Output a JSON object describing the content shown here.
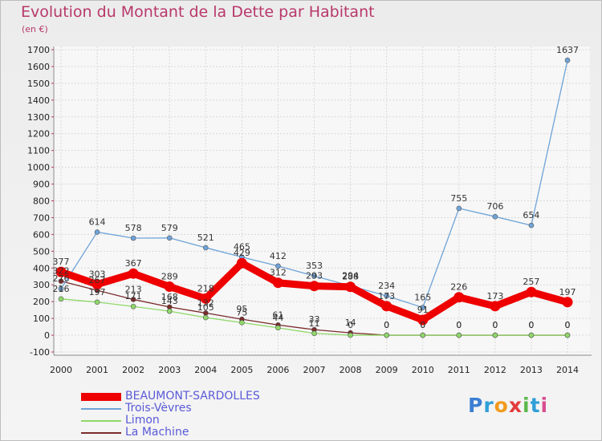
{
  "header": {
    "title": "Evolution du Montant de la Dette par Habitant",
    "subtitle": "(en €)"
  },
  "logo": {
    "text": "Proxiti"
  },
  "chart_data": {
    "type": "line",
    "title": "Evolution du Montant de la Dette par Habitant",
    "ylabel": "(en €)",
    "xlabel": "",
    "ylim": [
      -100,
      1700
    ],
    "yticks": [
      -100,
      0,
      100,
      200,
      300,
      400,
      500,
      600,
      700,
      800,
      900,
      1000,
      1100,
      1200,
      1300,
      1400,
      1500,
      1600,
      1700
    ],
    "categories": [
      "2000",
      "2001",
      "2002",
      "2003",
      "2004",
      "2005",
      "2006",
      "2007",
      "2008",
      "2009",
      "2010",
      "2011",
      "2012",
      "2013",
      "2014"
    ],
    "grid": true,
    "legend_position": "bottom-left",
    "series": [
      {
        "name": "BEAUMONT-SARDOLLES",
        "color": "#ee0000",
        "values": [
          377,
          303,
          367,
          289,
          218,
          429,
          312,
          293,
          288,
          173,
          91,
          226,
          173,
          257,
          197
        ],
        "labels": [
          "377",
          "303",
          "367",
          "289",
          "218",
          "429",
          "312",
          "293",
          "288",
          "173",
          "91",
          "226",
          "173",
          "257",
          "197"
        ]
      },
      {
        "name": "Trois-Vèvres",
        "color": "#6ea3d8",
        "values": [
          276,
          614,
          578,
          579,
          521,
          465,
          412,
          353,
          294,
          234,
          165,
          755,
          706,
          654,
          1637
        ],
        "labels": [
          "276",
          "614",
          "578",
          "579",
          "521",
          "465",
          "412",
          "353",
          "294",
          "234",
          "165",
          "755",
          "706",
          "654",
          "1637"
        ]
      },
      {
        "name": "Limon",
        "color": "#8fd86a",
        "values": [
          216,
          197,
          171,
          143,
          105,
          75,
          44,
          11,
          0,
          0,
          0,
          0,
          0,
          0,
          0
        ],
        "labels": [
          "216",
          "197",
          "171",
          "143",
          "105",
          "75",
          "44",
          "11",
          "0",
          "0",
          "0",
          "0",
          "0",
          "0",
          "0"
        ]
      },
      {
        "name": "La Machine",
        "color": "#7a2a2a",
        "values": [
          322,
          267,
          213,
          168,
          132,
          95,
          61,
          33,
          14,
          0,
          0,
          0,
          0,
          0,
          0
        ],
        "labels": [
          "322",
          "267",
          "213",
          "168",
          "132",
          "95",
          "61",
          "33",
          "14",
          "0",
          "0",
          "0",
          "0",
          "0",
          "0"
        ]
      }
    ]
  }
}
